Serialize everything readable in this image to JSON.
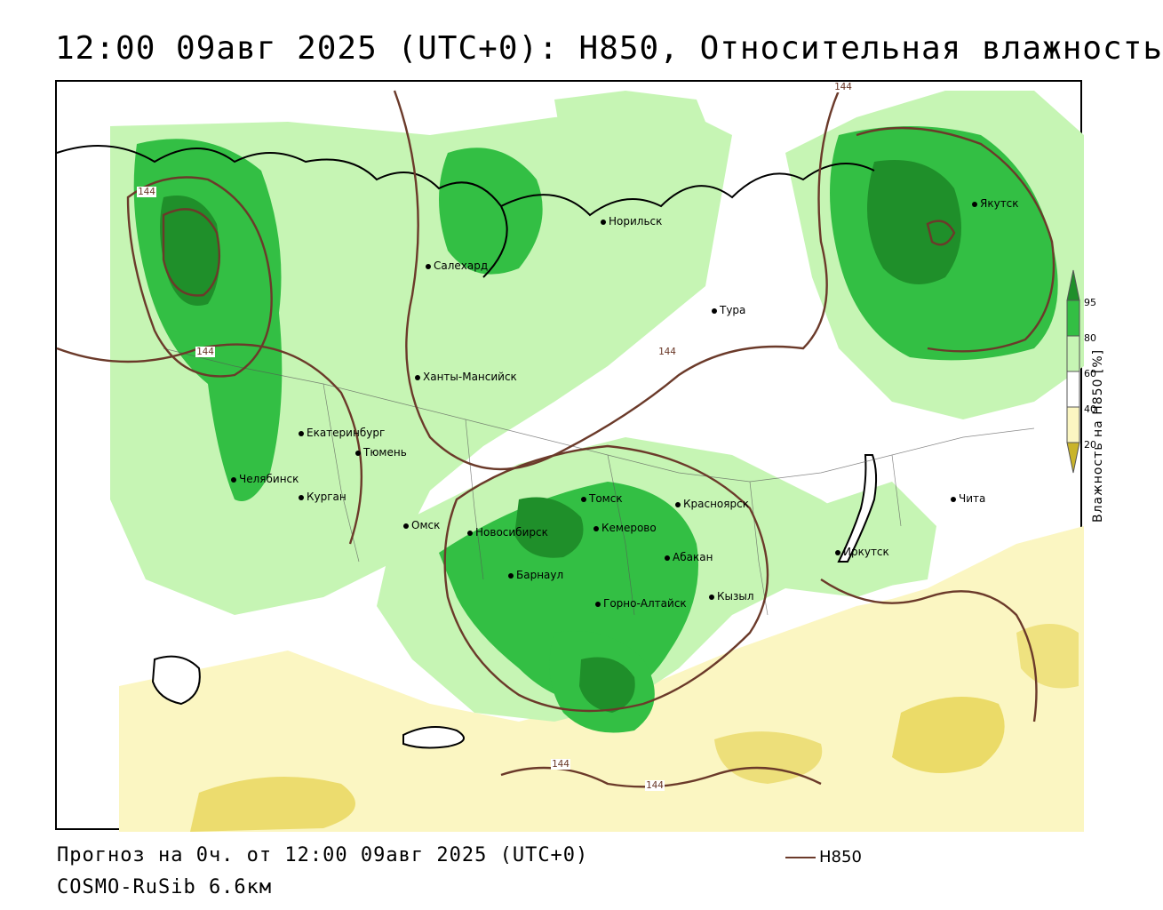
{
  "title": "12:00 09авг 2025 (UTC+0): H850, Относительная влажность",
  "colors": {
    "very_humid": "#1f8f2a",
    "humid": "#33bf44",
    "moderate": "#c6f5b4",
    "dry_light": "#fbf6c2",
    "dry": "#e5d14a",
    "contour": "#6b3a2a",
    "border": "#000000"
  },
  "cities": [
    {
      "name": "Норильск"
    },
    {
      "name": "Салехард"
    },
    {
      "name": "Тура"
    },
    {
      "name": "Якутск"
    },
    {
      "name": "Ханты-Мансийск"
    },
    {
      "name": "Екатеринбург"
    },
    {
      "name": "Тюмень"
    },
    {
      "name": "Челябинск"
    },
    {
      "name": "Курган"
    },
    {
      "name": "Омск"
    },
    {
      "name": "Новосибирск"
    },
    {
      "name": "Томск"
    },
    {
      "name": "Кемерово"
    },
    {
      "name": "Красноярск"
    },
    {
      "name": "Барнаул"
    },
    {
      "name": "Абакан"
    },
    {
      "name": "Горно-Алтайск"
    },
    {
      "name": "Кызыл"
    },
    {
      "name": "Иркутск"
    },
    {
      "name": "Чита"
    }
  ],
  "isolines": {
    "label": "144"
  },
  "colorbar": {
    "ticks": [
      "95",
      "80",
      "60",
      "40",
      "20"
    ],
    "title": "Влажность на H850 [%]"
  },
  "footer": {
    "forecast": "Прогноз на 0ч. от 12:00 09авг 2025 (UTC+0)",
    "model": "COSMO-RuSib 6.6км",
    "legend_label": "H850"
  }
}
